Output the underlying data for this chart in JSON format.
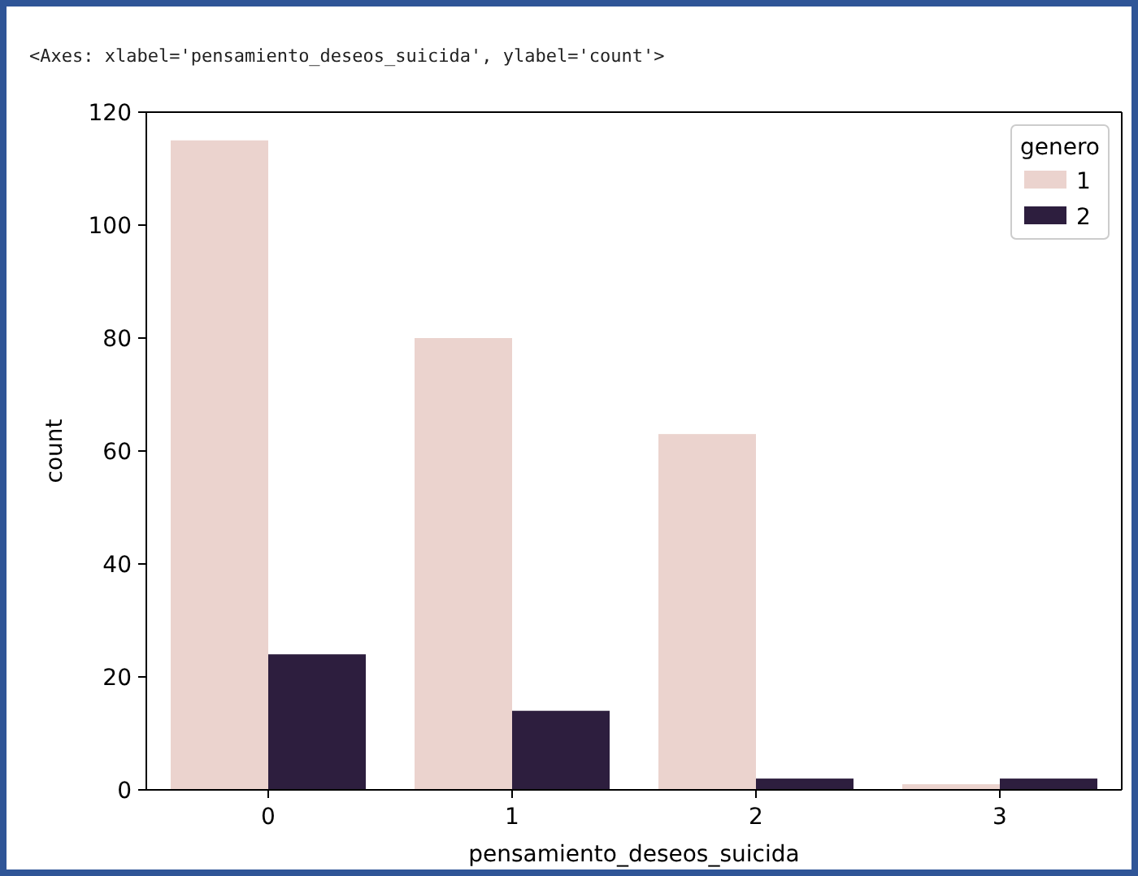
{
  "chart_data": {
    "type": "bar",
    "xlabel": "pensamiento_deseos_suicida",
    "ylabel": "count",
    "legend_title": "genero",
    "annotations": [
      "<Axes: xlabel='pensamiento_deseos_suicida', ylabel='count'>"
    ],
    "categories": [
      "0",
      "1",
      "2",
      "3"
    ],
    "series": [
      {
        "name": "1",
        "color": "#ebd3ce",
        "values": [
          115,
          80,
          63,
          1
        ]
      },
      {
        "name": "2",
        "color": "#2d1e3e",
        "values": [
          24,
          14,
          2,
          2
        ]
      }
    ],
    "ylim": [
      0,
      120
    ],
    "yticks": [
      0,
      20,
      40,
      60,
      80,
      100,
      120
    ],
    "legend": "top right",
    "grid": false
  }
}
